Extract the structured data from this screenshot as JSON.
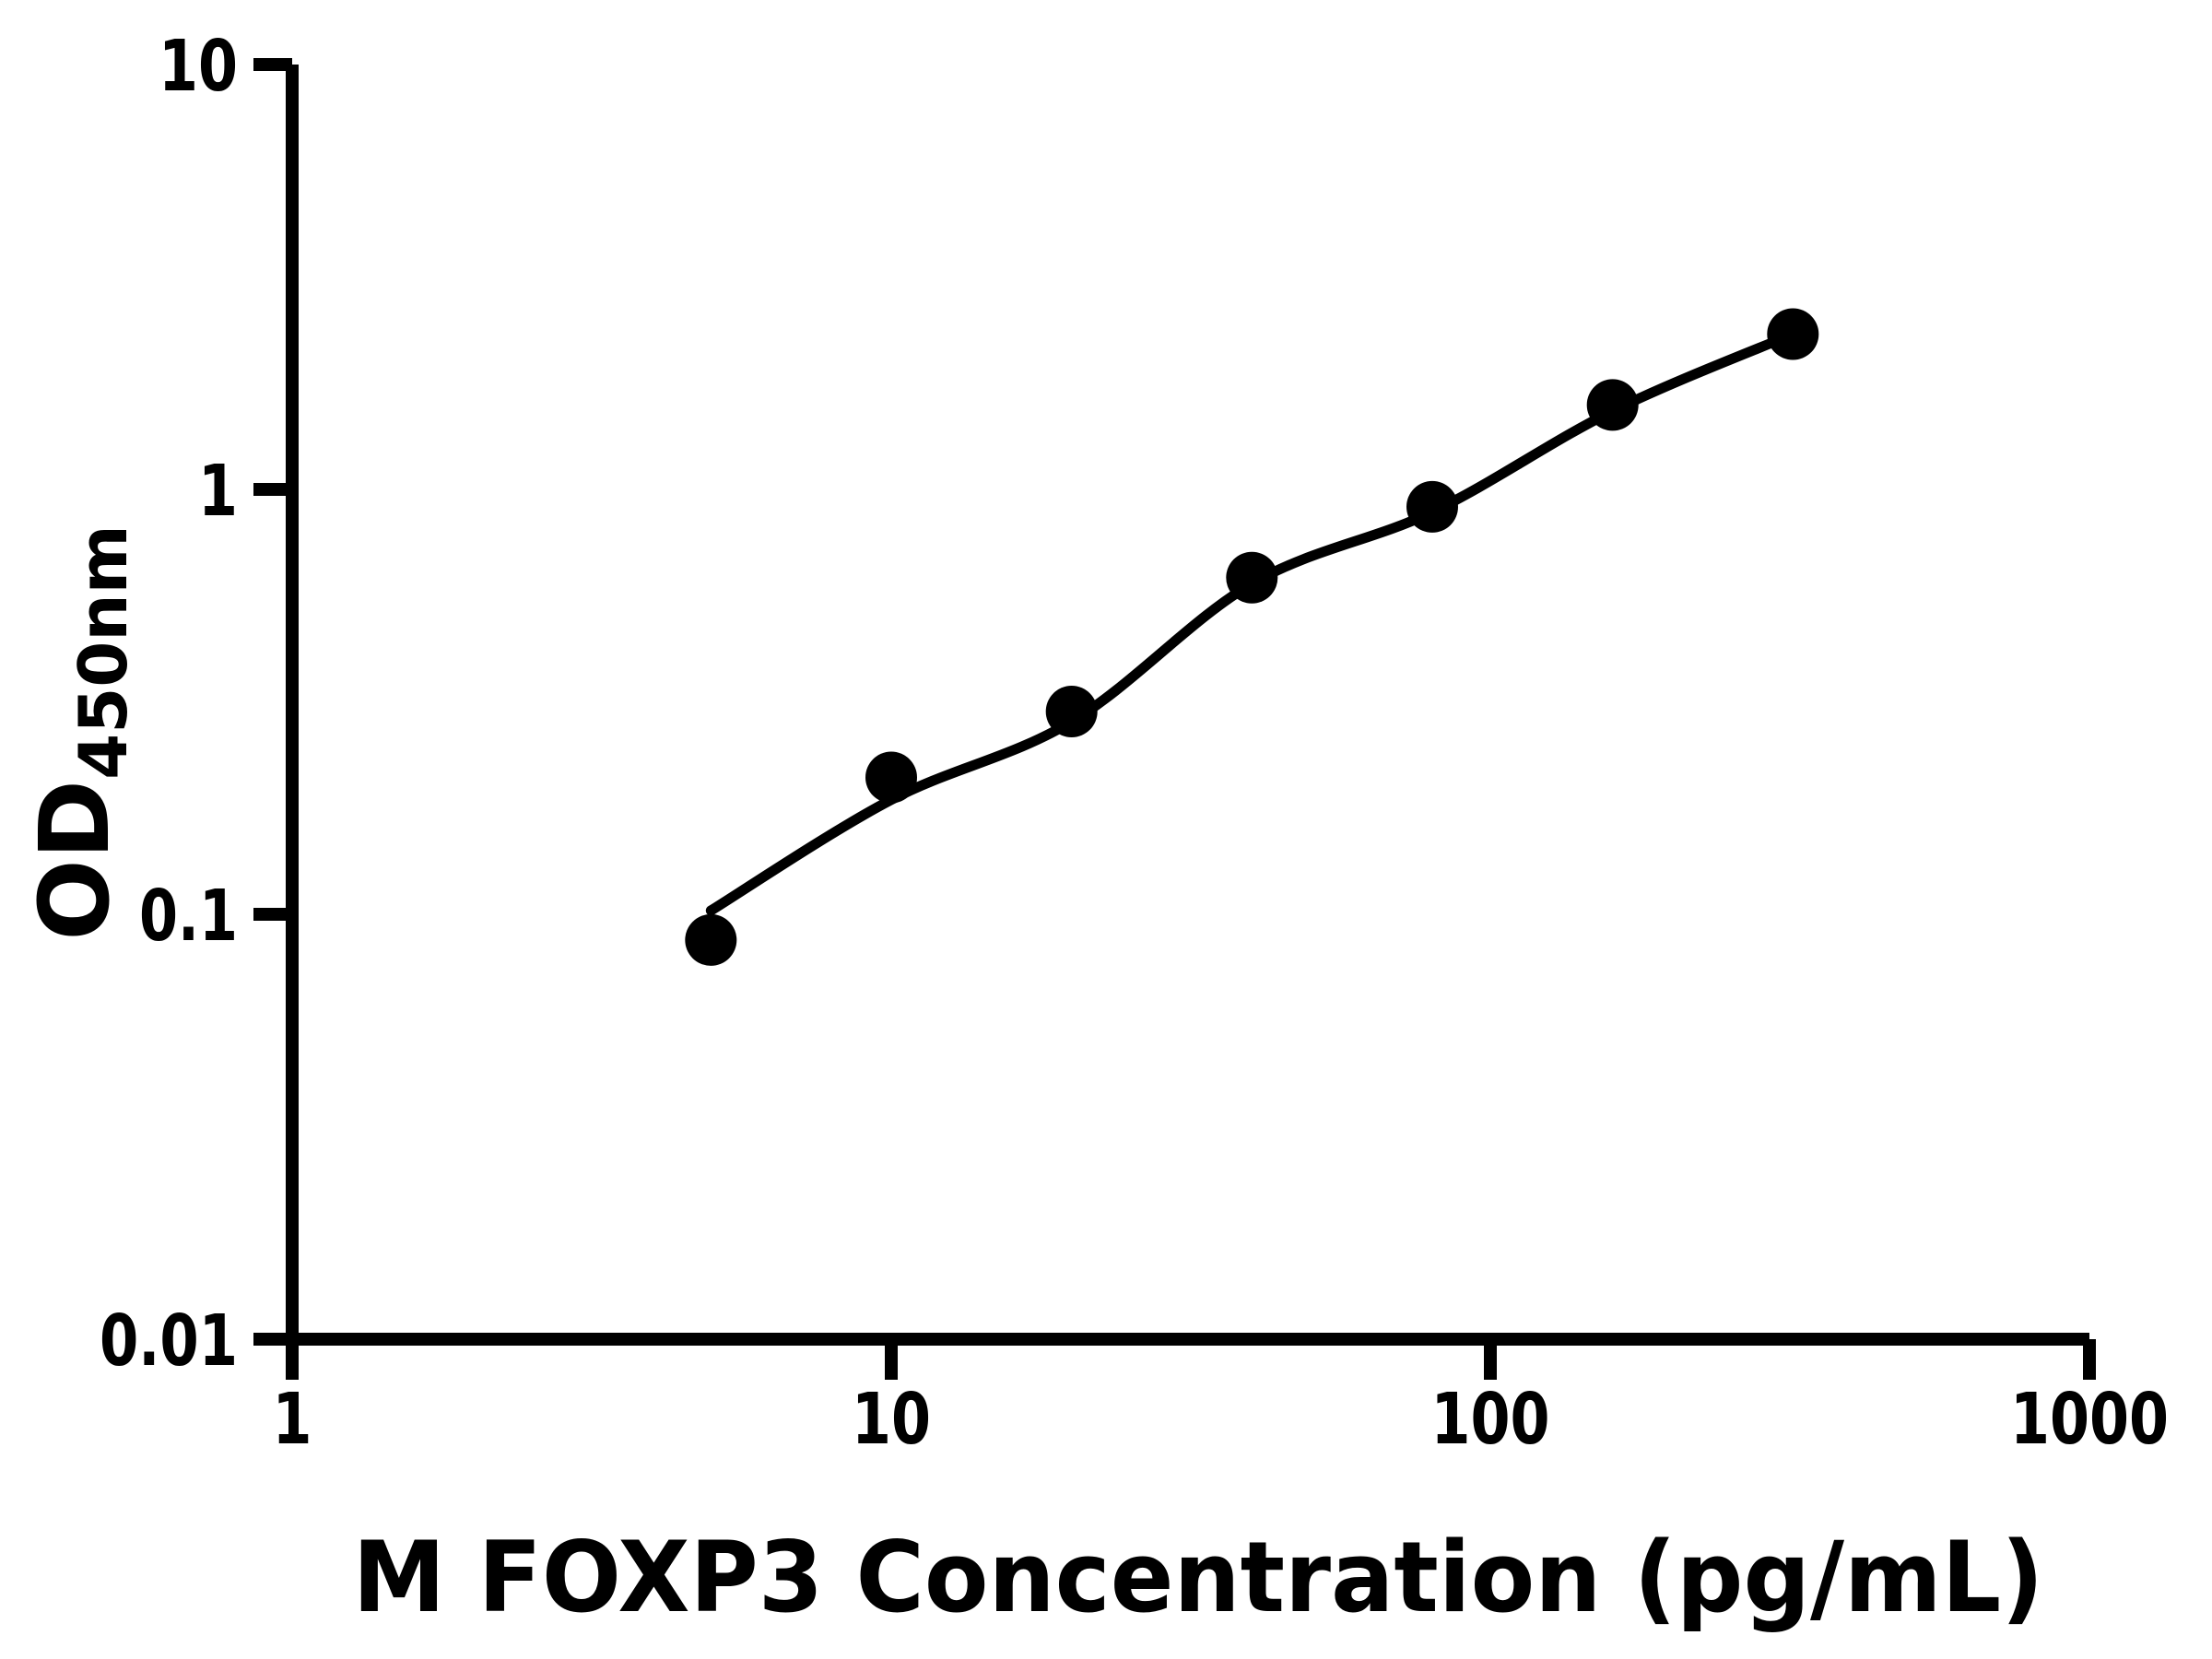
{
  "chart_data": {
    "type": "scatter",
    "title": "",
    "xlabel": "M FOXP3 Concentration (pg/mL)",
    "ylabel": {
      "main": "OD",
      "sub": "450nm"
    },
    "x_scale": "log",
    "y_scale": "log",
    "xlim": [
      1,
      1000
    ],
    "ylim": [
      0.01,
      10
    ],
    "grid": false,
    "legend": null,
    "axis_color": "#000000",
    "marker_color": "#000000",
    "curve_color": "#000000",
    "x_ticks": [
      {
        "value": 1,
        "label": "1"
      },
      {
        "value": 10,
        "label": "10"
      },
      {
        "value": 100,
        "label": "100"
      },
      {
        "value": 1000,
        "label": "1000"
      }
    ],
    "y_ticks": [
      {
        "value": 10,
        "label": "10"
      },
      {
        "value": 1,
        "label": "1"
      },
      {
        "value": 0.1,
        "label": "0.1"
      },
      {
        "value": 0.01,
        "label": "0.01"
      }
    ],
    "series": [
      {
        "name": "standard-curve-points",
        "marker": "filled-circle",
        "points": [
          {
            "x": 5,
            "y": 0.087
          },
          {
            "x": 10,
            "y": 0.21
          },
          {
            "x": 20,
            "y": 0.3
          },
          {
            "x": 40,
            "y": 0.62
          },
          {
            "x": 80,
            "y": 0.91
          },
          {
            "x": 160,
            "y": 1.58
          },
          {
            "x": 320,
            "y": 2.32
          }
        ]
      }
    ],
    "fit_curve": {
      "name": "fitted-standard-curve",
      "points": [
        {
          "x": 5,
          "y": 0.102
        },
        {
          "x": 10,
          "y": 0.186
        },
        {
          "x": 20,
          "y": 0.284
        },
        {
          "x": 40,
          "y": 0.6
        },
        {
          "x": 80,
          "y": 0.885
        },
        {
          "x": 160,
          "y": 1.53
        },
        {
          "x": 320,
          "y": 2.32
        }
      ]
    }
  }
}
